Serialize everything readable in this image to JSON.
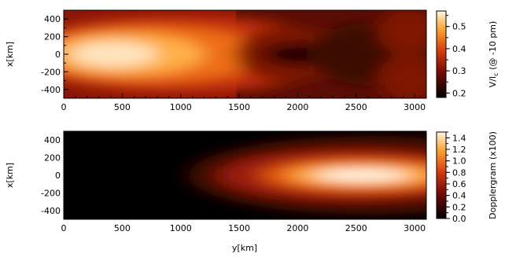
{
  "chart_data": [
    {
      "type": "heatmap",
      "title": "",
      "xlabel": "",
      "ylabel": "x[km]",
      "xlim": [
        0,
        3100
      ],
      "ylim": [
        -500,
        500
      ],
      "x_ticks": [
        0,
        500,
        1000,
        1500,
        2000,
        2500,
        3000
      ],
      "y_ticks": [
        -400,
        -200,
        0,
        200,
        400
      ],
      "colormap": "hot",
      "colorbar": {
        "label": "V/I",
        "label_subscript": "c",
        "label_suffix": " (@ -10 pm)",
        "range": [
          0.18,
          0.57
        ],
        "ticks": [
          0.2,
          0.3,
          0.4,
          0.5
        ],
        "tick_labels": [
          "0.2",
          "0.3",
          "0.4",
          "0.5"
        ]
      },
      "features": [
        {
          "description": "bright core",
          "y_km": 450,
          "x_km": 0,
          "value": 0.57
        },
        {
          "description": "dark minimum",
          "y_km": 2200,
          "x_km": 0,
          "value": 0.18
        },
        {
          "description": "edge level",
          "y_km": 3100,
          "x_km": 0,
          "value": 0.3
        }
      ]
    },
    {
      "type": "heatmap",
      "title": "",
      "xlabel": "y[km]",
      "ylabel": "x[km]",
      "xlim": [
        0,
        3100
      ],
      "ylim": [
        -500,
        500
      ],
      "x_ticks": [
        0,
        500,
        1000,
        1500,
        2000,
        2500,
        3000
      ],
      "y_ticks": [
        -400,
        -200,
        0,
        200,
        400
      ],
      "colormap": "hot",
      "colorbar": {
        "label": "Dopplergram (x100)",
        "range": [
          0.0,
          1.5
        ],
        "ticks": [
          0.0,
          0.2,
          0.4,
          0.6,
          0.8,
          1.0,
          1.2,
          1.4
        ],
        "tick_labels": [
          "0.0",
          "0.2",
          "0.4",
          "0.6",
          "0.8",
          "1.0",
          "1.2",
          "1.4"
        ]
      },
      "features": [
        {
          "description": "onset",
          "y_km": 1200,
          "x_km": 0,
          "value": 0.1
        },
        {
          "description": "bright core",
          "y_km": 2550,
          "x_km": 0,
          "value": 1.45
        }
      ]
    }
  ]
}
